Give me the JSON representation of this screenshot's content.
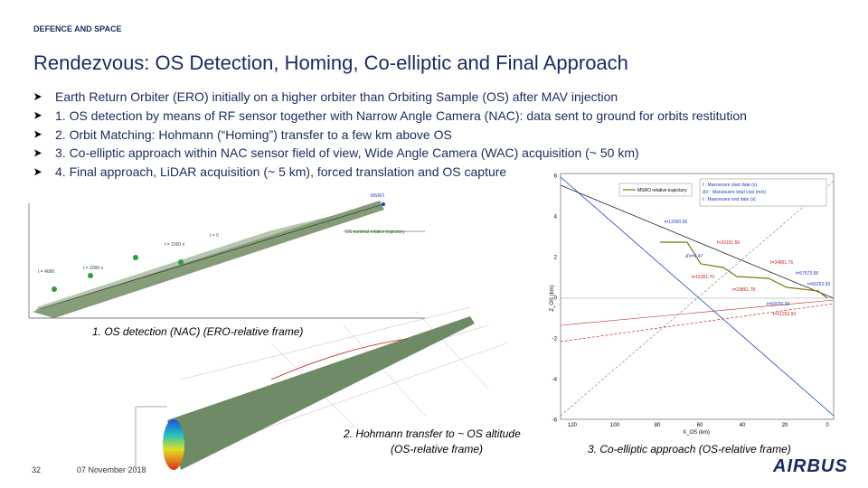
{
  "header": {
    "section": "DEFENCE AND SPACE",
    "title": "Rendezvous: OS Detection, Homing, Co-elliptic and Final Approach"
  },
  "bullets": [
    "Earth Return Orbiter (ERO) initially on a higher orbiter than Orbiting Sample (OS) after MAV injection",
    "1. OS detection by means of RF sensor together with Narrow Angle Camera (NAC): data sent to ground for orbits restitution",
    "2. Orbit Matching: Hohmann (“Homing”) transfer to a few km above OS",
    "3. Co-elliptic approach within NAC sensor field of view, Wide Angle Camera  (WAC) acquisition (~ 50 km)",
    "4. Final approach, LiDAR acquisition (~ 5 km), forced translation and OS capture"
  ],
  "figure_1": {
    "caption": "1. OS detection (NAC) (ERO-relative frame)",
    "labels": [
      "MSRO",
      "OS nominal relative trajectory",
      "t = 0",
      "t = 1000 s",
      "t = 2000 s",
      "t = 4000"
    ]
  },
  "figure_2": {
    "caption": [
      "2. Hohmann transfer to ~ OS altitude",
      "(OS-relative frame)"
    ]
  },
  "figure_3": {
    "caption": "3. Co-elliptic approach (OS-relative frame)",
    "legend": [
      "MSRO relative trajectory",
      "t : Manoeuvre start date (s)",
      "ΔV : Manoeuvre total cost (m/s)",
      "t : Manoeuvre end date (s)"
    ],
    "y_axis_label": "Z_OS (km)",
    "x_axis_label": "X_OS (km)",
    "yticks": [
      "6",
      "4",
      "2",
      "0",
      "-2",
      "-4",
      "-6"
    ],
    "xticks": [
      "120",
      "100",
      "80",
      "60",
      "40",
      "20",
      "0"
    ],
    "annotations": [
      "t=12000.00",
      "t=20151.56",
      "ΔV=0.47",
      "t=34861.76",
      "t=57573.65",
      "t=15361.70",
      "t=66253.93",
      "t=23861.78",
      "t=50070.33",
      "t=61253.93"
    ]
  },
  "footer": {
    "page_number": "32",
    "date": "07 November 2018",
    "logo": "AIRBUS"
  }
}
